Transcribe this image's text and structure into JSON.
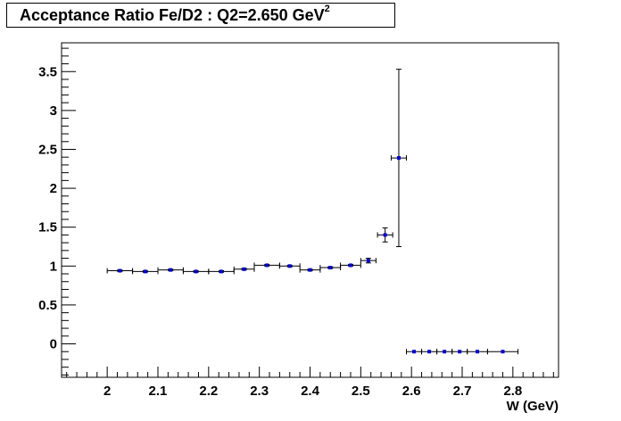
{
  "chart_data": {
    "type": "scatter",
    "title": "Acceptance Ratio Fe/D2 : Q2=2.650 GeV",
    "title_superscript": "2",
    "xlabel": "W (GeV)",
    "ylabel": "",
    "xlim": [
      1.91,
      2.89
    ],
    "ylim": [
      -0.43,
      3.87
    ],
    "x_ticks": [
      "2",
      "2.1",
      "2.2",
      "2.3",
      "2.4",
      "2.5",
      "2.6",
      "2.7",
      "2.8"
    ],
    "y_ticks": [
      "0",
      "0.5",
      "1",
      "1.5",
      "2",
      "2.5",
      "3",
      "3.5"
    ],
    "grid": false,
    "legend": "none",
    "marker_color": "#0000cc",
    "points": [
      {
        "x": 2.025,
        "y": 0.94,
        "xerr": 0.025,
        "yerr": 0.01
      },
      {
        "x": 2.075,
        "y": 0.93,
        "xerr": 0.025,
        "yerr": 0.01
      },
      {
        "x": 2.125,
        "y": 0.95,
        "xerr": 0.025,
        "yerr": 0.01
      },
      {
        "x": 2.175,
        "y": 0.93,
        "xerr": 0.025,
        "yerr": 0.01
      },
      {
        "x": 2.225,
        "y": 0.93,
        "xerr": 0.025,
        "yerr": 0.01
      },
      {
        "x": 2.27,
        "y": 0.96,
        "xerr": 0.02,
        "yerr": 0.01
      },
      {
        "x": 2.315,
        "y": 1.01,
        "xerr": 0.025,
        "yerr": 0.01
      },
      {
        "x": 2.36,
        "y": 1.0,
        "xerr": 0.02,
        "yerr": 0.01
      },
      {
        "x": 2.4,
        "y": 0.95,
        "xerr": 0.02,
        "yerr": 0.01
      },
      {
        "x": 2.44,
        "y": 0.98,
        "xerr": 0.02,
        "yerr": 0.01
      },
      {
        "x": 2.48,
        "y": 1.01,
        "xerr": 0.02,
        "yerr": 0.01
      },
      {
        "x": 2.515,
        "y": 1.07,
        "xerr": 0.015,
        "yerr": 0.03
      },
      {
        "x": 2.548,
        "y": 1.4,
        "xerr": 0.015,
        "yerr": 0.09
      },
      {
        "x": 2.575,
        "y": 2.39,
        "xerr": 0.015,
        "yerr": 1.14
      },
      {
        "x": 2.605,
        "y": -0.1,
        "xerr": 0.015,
        "yerr": 0.0
      },
      {
        "x": 2.635,
        "y": -0.1,
        "xerr": 0.015,
        "yerr": 0.0
      },
      {
        "x": 2.665,
        "y": -0.1,
        "xerr": 0.015,
        "yerr": 0.0
      },
      {
        "x": 2.695,
        "y": -0.1,
        "xerr": 0.015,
        "yerr": 0.0
      },
      {
        "x": 2.73,
        "y": -0.1,
        "xerr": 0.02,
        "yerr": 0.0
      },
      {
        "x": 2.78,
        "y": -0.1,
        "xerr": 0.03,
        "yerr": 0.0
      }
    ]
  }
}
